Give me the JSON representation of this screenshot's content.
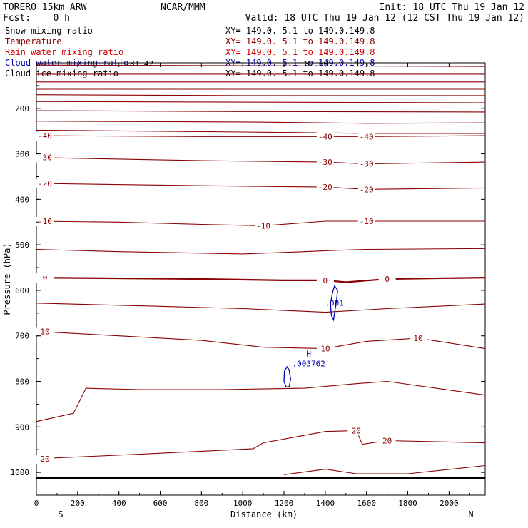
{
  "header": {
    "model": "TORERO  15km ARW",
    "center": "NCAR/MMM",
    "init": "Init: 18 UTC Thu 19 Jan 12",
    "fcst": "Fcst:    0 h",
    "valid": "Valid: 18 UTC Thu 19 Jan 12 (12 CST Thu 19 Jan 12)"
  },
  "fields": [
    {
      "name": "Snow mixing ratio",
      "xy": "XY= 149.0.  5.1 to 149.0.149.8",
      "color": "#000000"
    },
    {
      "name": "Temperature",
      "xy": "XY= 149.0.  5.1 to 149.0.149.8",
      "color": "#8b0000"
    },
    {
      "name": "Rain water mixing ratio",
      "xy": "XY= 149.0.  5.1 to 149.0.149.8",
      "color": "#d40000"
    },
    {
      "name": "Cloud water mixing ratio",
      "xy": "XY= 149.0.  5.1 to 149.0.149.8",
      "color": "#0000b4"
    },
    {
      "name": "Cloud ice mixing ratio",
      "xy": "XY= 149.0.  5.1 to 149.0.149.8",
      "color": "#000000"
    }
  ],
  "chart_data": {
    "type": "line",
    "xlabel": "Distance (km)",
    "ylabel": "Pressure (hPa)",
    "xlim": [
      0,
      2175
    ],
    "ylim": [
      1050,
      100
    ],
    "x_ticks": [
      0,
      200,
      400,
      600,
      800,
      1000,
      1200,
      1400,
      1600,
      1800,
      2000
    ],
    "y_ticks": [
      200,
      300,
      400,
      500,
      600,
      700,
      800,
      900,
      1000
    ],
    "endpoints": {
      "left": "S",
      "right": "N"
    },
    "colors": {
      "temperature": "#8b0000",
      "cloud_water": "#0000b4",
      "ground": "#000000"
    },
    "temperature_isotherms": [
      {
        "label": "",
        "points": [
          [
            0,
            105
          ],
          [
            2175,
            108
          ]
        ]
      },
      {
        "label": "",
        "points": [
          [
            0,
            125
          ],
          [
            2175,
            125
          ]
        ]
      },
      {
        "label": "",
        "points": [
          [
            0,
            142
          ],
          [
            2175,
            142
          ]
        ]
      },
      {
        "label": "",
        "points": [
          [
            0,
            158
          ],
          [
            2175,
            158
          ]
        ]
      },
      {
        "label": "",
        "points": [
          [
            0,
            170
          ],
          [
            1000,
            172
          ],
          [
            2175,
            172
          ]
        ]
      },
      {
        "label": "",
        "points": [
          [
            0,
            185
          ],
          [
            2175,
            188
          ]
        ]
      },
      {
        "label": "",
        "points": [
          [
            0,
            205
          ],
          [
            1000,
            207
          ],
          [
            2175,
            208
          ]
        ]
      },
      {
        "label": "",
        "points": [
          [
            0,
            228
          ],
          [
            1000,
            230
          ],
          [
            1600,
            233
          ],
          [
            2175,
            232
          ]
        ]
      },
      {
        "label": "",
        "points": [
          [
            0,
            248
          ],
          [
            1000,
            252
          ],
          [
            1600,
            255
          ],
          [
            2175,
            255
          ]
        ]
      },
      {
        "label": "-40",
        "points": [
          [
            0,
            260
          ],
          [
            800,
            262
          ],
          [
            1400,
            262
          ],
          [
            1600,
            262
          ],
          [
            2175,
            260
          ]
        ]
      },
      {
        "label": "-30",
        "points": [
          [
            0,
            308
          ],
          [
            800,
            315
          ],
          [
            1400,
            318
          ],
          [
            1600,
            322
          ],
          [
            2175,
            318
          ]
        ]
      },
      {
        "label": "-20",
        "points": [
          [
            0,
            365
          ],
          [
            800,
            370
          ],
          [
            1400,
            373
          ],
          [
            1600,
            378
          ],
          [
            2175,
            375
          ]
        ]
      },
      {
        "label": "-10",
        "points": [
          [
            0,
            448
          ],
          [
            400,
            450
          ],
          [
            800,
            455
          ],
          [
            1100,
            458
          ],
          [
            1400,
            448
          ],
          [
            1600,
            448
          ],
          [
            2175,
            448
          ]
        ]
      },
      {
        "label": "",
        "points": [
          [
            0,
            510
          ],
          [
            400,
            515
          ],
          [
            1000,
            520
          ],
          [
            1300,
            515
          ],
          [
            1450,
            512
          ],
          [
            1600,
            510
          ],
          [
            2175,
            508
          ]
        ]
      },
      {
        "label": "0",
        "points": [
          [
            0,
            572
          ],
          [
            800,
            575
          ],
          [
            1200,
            578
          ],
          [
            1400,
            578
          ],
          [
            1500,
            582
          ],
          [
            1700,
            575
          ],
          [
            2175,
            572
          ]
        ]
      },
      {
        "label": "",
        "points": [
          [
            0,
            628
          ],
          [
            600,
            635
          ],
          [
            1000,
            640
          ],
          [
            1400,
            648
          ],
          [
            1700,
            640
          ],
          [
            2175,
            630
          ]
        ]
      },
      {
        "label": "10",
        "points": [
          [
            0,
            690
          ],
          [
            400,
            700
          ],
          [
            800,
            710
          ],
          [
            1100,
            725
          ],
          [
            1400,
            728
          ],
          [
            1600,
            712
          ],
          [
            1850,
            705
          ],
          [
            2175,
            728
          ]
        ]
      },
      {
        "label": "",
        "points": [
          [
            0,
            888
          ],
          [
            180,
            870
          ],
          [
            240,
            815
          ],
          [
            500,
            818
          ],
          [
            900,
            818
          ],
          [
            1300,
            815
          ],
          [
            1550,
            805
          ],
          [
            1700,
            800
          ],
          [
            2175,
            830
          ]
        ]
      },
      {
        "label": "20",
        "points": [
          [
            0,
            970
          ],
          [
            500,
            960
          ],
          [
            1050,
            948
          ],
          [
            1100,
            935
          ],
          [
            1400,
            910
          ],
          [
            1550,
            908
          ],
          [
            1580,
            938
          ],
          [
            1700,
            930
          ],
          [
            2175,
            935
          ]
        ]
      },
      {
        "label": "",
        "points": [
          [
            1200,
            1005
          ],
          [
            1400,
            993
          ],
          [
            1550,
            1003
          ],
          [
            1800,
            1003
          ],
          [
            2175,
            985
          ]
        ]
      }
    ],
    "cloud_water_contours": [
      {
        "label": ".001",
        "points": [
          [
            1445,
            590
          ],
          [
            1460,
            600
          ],
          [
            1455,
            620
          ],
          [
            1440,
            665
          ],
          [
            1430,
            655
          ],
          [
            1425,
            630
          ],
          [
            1435,
            605
          ],
          [
            1445,
            590
          ]
        ]
      },
      {
        "label": "",
        "points": [
          [
            1215,
            768
          ],
          [
            1225,
            775
          ],
          [
            1232,
            795
          ],
          [
            1225,
            812
          ],
          [
            1210,
            812
          ],
          [
            1200,
            800
          ],
          [
            1202,
            778
          ],
          [
            1215,
            768
          ]
        ]
      }
    ],
    "ground_pressure": 1012,
    "maximum": {
      "label": "H",
      "value": ".003762"
    },
    "top_values": [
      "-81.42",
      "82.60"
    ]
  }
}
